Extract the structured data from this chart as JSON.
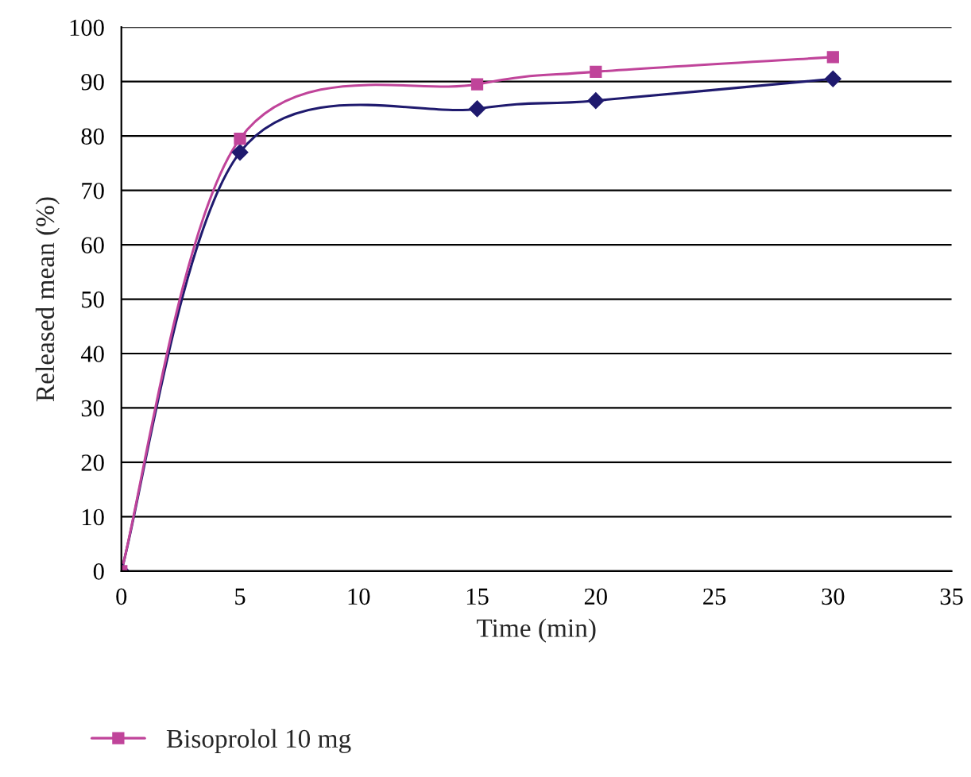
{
  "chart_data": {
    "type": "line",
    "xlabel": "Time (min)",
    "ylabel": "Released mean (%)",
    "x": [
      0,
      5,
      15,
      20,
      30
    ],
    "series": [
      {
        "color": "#1f1a6e",
        "marker": "diamond",
        "values": [
          0,
          77,
          85,
          86.5,
          90.5
        ]
      },
      {
        "name": "Bisoprolol 10 mg",
        "color": "#c0449a",
        "marker": "square",
        "values": [
          0,
          79.5,
          89.5,
          91.8,
          94.5
        ]
      }
    ],
    "xlim": [
      0,
      35
    ],
    "xticks": [
      0,
      5,
      10,
      15,
      20,
      25,
      30,
      35
    ],
    "ylim": [
      0,
      100
    ],
    "yticks": [
      0,
      10,
      20,
      30,
      40,
      50,
      60,
      70,
      80,
      90,
      100
    ],
    "grid": "y",
    "legend": "bottom",
    "line_style": "solid"
  }
}
